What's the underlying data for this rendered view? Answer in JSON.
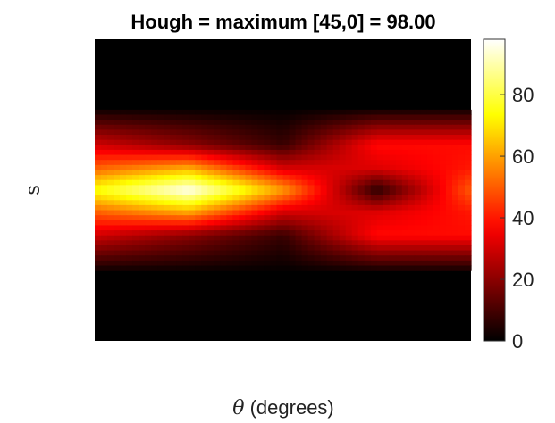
{
  "chart_data": {
    "type": "heatmap",
    "title": "Hough = maximum [45,0] = 98.00",
    "xlabel_symbol": "θ",
    "xlabel_text": " (degrees)",
    "ylabel": "s",
    "colormap": "hot",
    "colorbar": {
      "min": 0,
      "max": 98,
      "ticks": [
        0,
        20,
        40,
        60,
        80
      ],
      "tick_labels": [
        "0",
        "20",
        "40",
        "60",
        "80"
      ]
    },
    "x_grid": [
      0,
      45,
      90,
      135,
      180
    ],
    "y_grid": [
      -1.0,
      -0.8,
      -0.55,
      -0.3,
      -0.15,
      0.0,
      0.15,
      0.3,
      0.55,
      0.8,
      1.0
    ],
    "z": [
      [
        0,
        0,
        0,
        0,
        0
      ],
      [
        0,
        0,
        0,
        0,
        0
      ],
      [
        0,
        0,
        0,
        0,
        0
      ],
      [
        30,
        20,
        8,
        38,
        38
      ],
      [
        50,
        60,
        30,
        32,
        40
      ],
      [
        75,
        98,
        60,
        5,
        50
      ],
      [
        50,
        60,
        30,
        32,
        40
      ],
      [
        30,
        20,
        8,
        38,
        38
      ],
      [
        0,
        0,
        0,
        0,
        0
      ],
      [
        0,
        0,
        0,
        0,
        0
      ],
      [
        0,
        0,
        0,
        0,
        0
      ]
    ]
  }
}
